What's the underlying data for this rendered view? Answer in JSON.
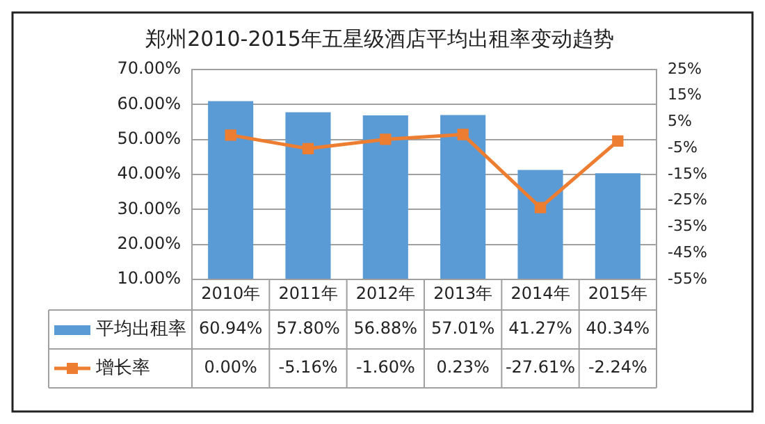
{
  "chart_data": {
    "type": "bar",
    "title": "郑州2010-2015年五星级酒店平均出租率变动趋势",
    "categories": [
      "2010年",
      "2011年",
      "2012年",
      "2013年",
      "2014年",
      "2015年"
    ],
    "series": [
      {
        "name": "平均出租率",
        "color": "#5b9bd5",
        "values": [
          60.94,
          57.8,
          56.88,
          57.01,
          41.27,
          40.34
        ],
        "value_labels": [
          "60.94%",
          "57.80%",
          "56.88%",
          "57.01%",
          "41.27%",
          "40.34%"
        ]
      },
      {
        "name": "增长率",
        "type": "line",
        "axis": "y2",
        "color": "#ed7d31",
        "marker": "square",
        "values": [
          0,
          -5.16,
          -1.6,
          0.23,
          -27.61,
          -2.24
        ],
        "value_labels": [
          "0.00%",
          "-5.16%",
          "-1.60%",
          "0.23%",
          "-27.61%",
          "-2.24%"
        ]
      }
    ],
    "ylim": [
      10,
      70
    ],
    "yticks": [
      {
        "value": 10,
        "label": "10.00%"
      },
      {
        "value": 20,
        "label": "20.00%"
      },
      {
        "value": 30,
        "label": "30.00%"
      },
      {
        "value": 40,
        "label": "40.00%"
      },
      {
        "value": 50,
        "label": "50.00%"
      },
      {
        "value": 60,
        "label": "60.00%"
      },
      {
        "value": 70,
        "label": "70.00%"
      }
    ],
    "y2lim": [
      -55,
      25
    ],
    "y2ticks": [
      {
        "value": -55,
        "label": "-55%"
      },
      {
        "value": -45,
        "label": "-45%"
      },
      {
        "value": -35,
        "label": "-35%"
      },
      {
        "value": -25,
        "label": "-25%"
      },
      {
        "value": -15,
        "label": "-15%"
      },
      {
        "value": -5,
        "label": "-5%"
      },
      {
        "value": 5,
        "label": "5%"
      },
      {
        "value": 15,
        "label": "15%"
      },
      {
        "value": 25,
        "label": "25%"
      }
    ],
    "grid": "y",
    "legend": "bottom left"
  }
}
